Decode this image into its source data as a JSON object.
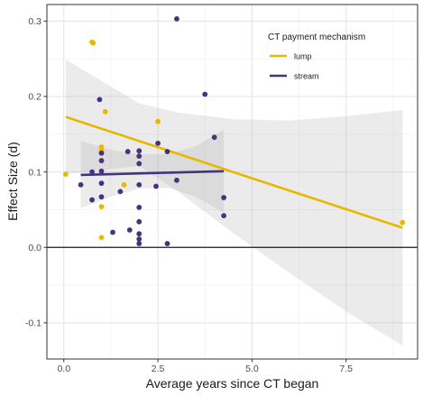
{
  "chart_data": {
    "type": "scatter",
    "title": "",
    "xlabel": "Average years since CT began",
    "ylabel": "Effect Size (d)",
    "xlim": [
      -0.45,
      9.4
    ],
    "ylim": [
      -0.148,
      0.322
    ],
    "x_ticks": [
      0,
      2.5,
      5,
      7.5
    ],
    "x_tick_labels": [
      "0.0",
      "2.5",
      "5.0",
      "7.5"
    ],
    "y_ticks": [
      -0.1,
      0,
      0.1,
      0.2,
      0.3
    ],
    "y_tick_labels": [
      "-0.1",
      "0.0",
      "0.1",
      "0.2",
      "0.3"
    ],
    "grid": true,
    "zero_line": 0,
    "legend": {
      "title": "CT payment mechanism",
      "position": "top-right inside",
      "entries": [
        "lump",
        "stream"
      ]
    },
    "series": [
      {
        "name": "lump",
        "color": "#E7B800",
        "points": [
          {
            "x": 0.05,
            "y": 0.097
          },
          {
            "x": 0.75,
            "y": 0.272
          },
          {
            "x": 0.78,
            "y": 0.271
          },
          {
            "x": 1.0,
            "y": 0.133
          },
          {
            "x": 1.0,
            "y": 0.128
          },
          {
            "x": 1.0,
            "y": 0.054
          },
          {
            "x": 1.0,
            "y": 0.013
          },
          {
            "x": 1.1,
            "y": 0.18
          },
          {
            "x": 1.6,
            "y": 0.083
          },
          {
            "x": 2.5,
            "y": 0.167
          },
          {
            "x": 9.0,
            "y": 0.033
          }
        ],
        "trend": {
          "x": [
            0.05,
            9.0
          ],
          "y": [
            0.173,
            0.026
          ]
        },
        "ci": {
          "x": [
            0.05,
            2.0,
            3.0,
            4.5,
            6.0,
            7.5,
            9.0
          ],
          "upper": [
            0.249,
            0.191,
            0.179,
            0.17,
            0.168,
            0.174,
            0.182
          ],
          "lower": [
            0.097,
            0.108,
            0.075,
            0.019,
            -0.034,
            -0.085,
            -0.13
          ]
        }
      },
      {
        "name": "stream",
        "color": "#46337E",
        "points": [
          {
            "x": 0.45,
            "y": 0.083
          },
          {
            "x": 0.75,
            "y": 0.1
          },
          {
            "x": 0.75,
            "y": 0.063
          },
          {
            "x": 0.95,
            "y": 0.196
          },
          {
            "x": 1.0,
            "y": 0.125
          },
          {
            "x": 1.0,
            "y": 0.115
          },
          {
            "x": 1.0,
            "y": 0.101
          },
          {
            "x": 1.0,
            "y": 0.085
          },
          {
            "x": 1.0,
            "y": 0.067
          },
          {
            "x": 1.3,
            "y": 0.02
          },
          {
            "x": 1.5,
            "y": 0.074
          },
          {
            "x": 1.7,
            "y": 0.127
          },
          {
            "x": 1.75,
            "y": 0.023
          },
          {
            "x": 2.0,
            "y": 0.128
          },
          {
            "x": 2.0,
            "y": 0.121
          },
          {
            "x": 2.0,
            "y": 0.111
          },
          {
            "x": 2.0,
            "y": 0.083
          },
          {
            "x": 2.0,
            "y": 0.053
          },
          {
            "x": 2.0,
            "y": 0.034
          },
          {
            "x": 2.0,
            "y": 0.018
          },
          {
            "x": 2.0,
            "y": 0.011
          },
          {
            "x": 2.0,
            "y": 0.005
          },
          {
            "x": 2.45,
            "y": 0.081
          },
          {
            "x": 2.5,
            "y": 0.138
          },
          {
            "x": 2.75,
            "y": 0.127
          },
          {
            "x": 2.75,
            "y": 0.005
          },
          {
            "x": 3.0,
            "y": 0.303
          },
          {
            "x": 3.0,
            "y": 0.089
          },
          {
            "x": 3.75,
            "y": 0.203
          },
          {
            "x": 4.0,
            "y": 0.146
          },
          {
            "x": 4.25,
            "y": 0.066
          },
          {
            "x": 4.25,
            "y": 0.042
          }
        ],
        "trend": {
          "x": [
            0.45,
            4.25
          ],
          "y": [
            0.096,
            0.101
          ]
        },
        "ci": {
          "x": [
            0.45,
            1.3,
            2.0,
            2.8,
            3.5,
            4.25
          ],
          "upper": [
            0.141,
            0.129,
            0.123,
            0.124,
            0.134,
            0.156
          ],
          "lower": [
            0.052,
            0.068,
            0.078,
            0.079,
            0.067,
            0.046
          ]
        }
      }
    ]
  }
}
